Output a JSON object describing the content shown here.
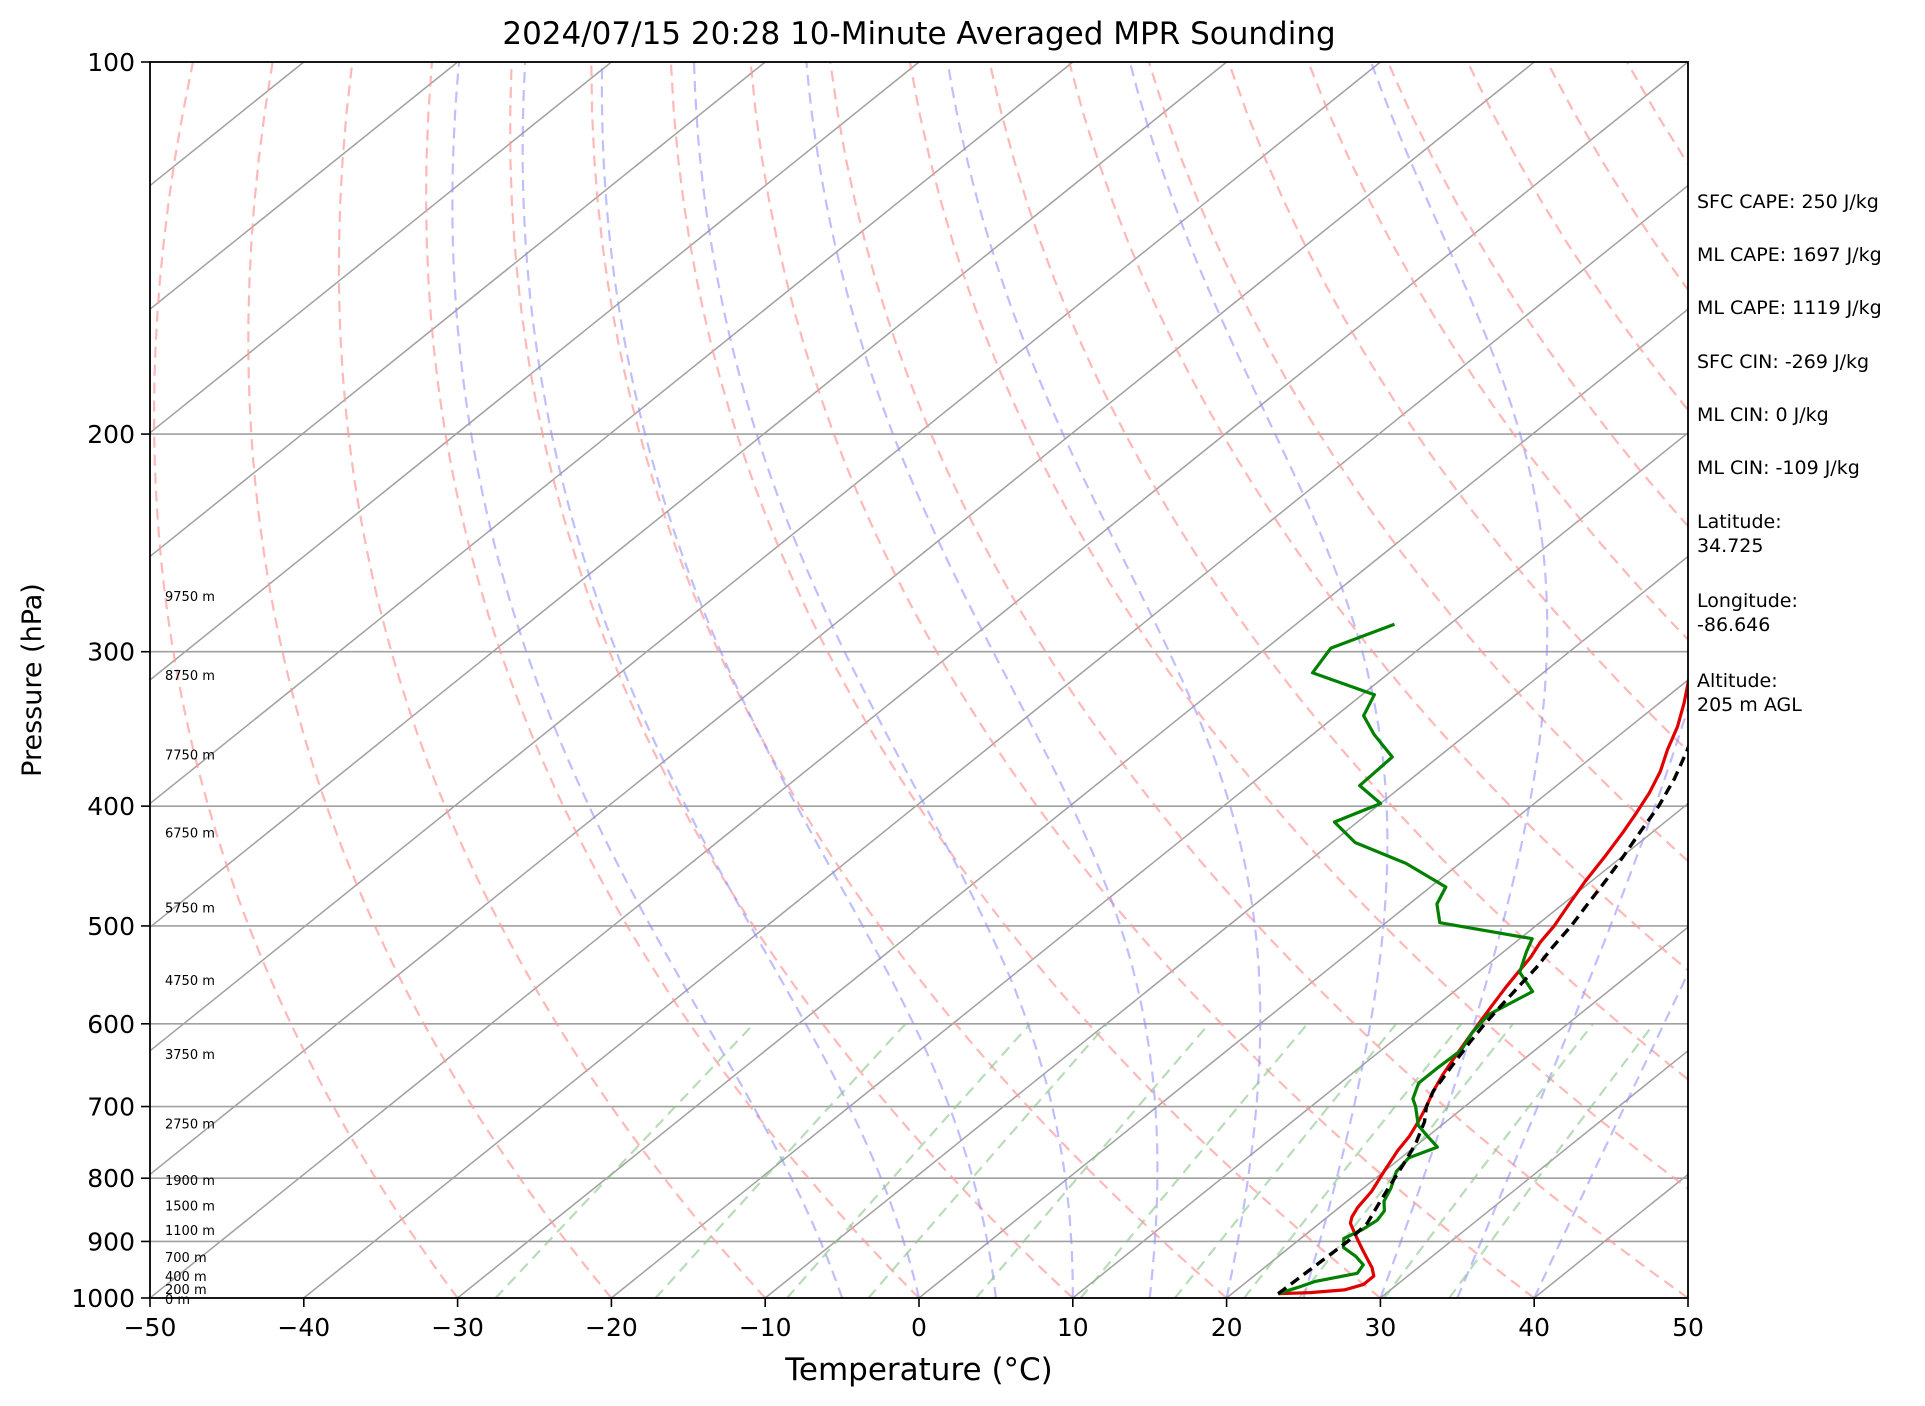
{
  "chart_data": {
    "type": "line",
    "title": "2024/07/15 20:28 10-Minute Averaged MPR Sounding",
    "xlabel": "Temperature (°C)",
    "ylabel": "Pressure (hPa)",
    "xlim": [
      -50,
      50
    ],
    "ylim": [
      1000,
      100
    ],
    "y_scale": "log",
    "skew_t": true,
    "grid": true,
    "x_ticks": [
      -50,
      -40,
      -30,
      -20,
      -10,
      0,
      10,
      20,
      30,
      40,
      50
    ],
    "x_tick_labels": [
      "−50",
      "−40",
      "−30",
      "−20",
      "−10",
      "0",
      "10",
      "20",
      "30",
      "40",
      "50"
    ],
    "y_ticks": [
      1000,
      900,
      800,
      700,
      600,
      500,
      400,
      300,
      200,
      100
    ],
    "y_tick_labels": [
      "1000",
      "900",
      "800",
      "700",
      "600",
      "500",
      "400",
      "300",
      "200",
      "100"
    ],
    "colors": {
      "temperature": "#e00000",
      "dewpoint": "#008000",
      "parcel": "#000000",
      "isotherm": "#a0a0a0",
      "dry_adiabat": "#ff9a9a",
      "moist_adiabat": "#8a8aff",
      "mixing_ratio": "#88c488"
    },
    "series": [
      {
        "key": "temperature",
        "pressure_hPa": [
          992,
          990,
          985,
          975,
          960,
          945,
          930,
          915,
          900,
          885,
          870,
          860,
          845,
          820,
          790,
          760,
          740,
          720,
          700,
          680,
          660,
          640,
          620,
          600,
          580,
          560,
          545,
          530,
          515,
          500,
          480,
          460,
          440,
          420,
          405,
          390,
          375,
          360,
          345,
          330,
          315,
          300,
          285
        ],
        "values": [
          23.0,
          25.0,
          27.0,
          27.8,
          27.8,
          27.0,
          26.0,
          25.0,
          24.0,
          23.0,
          22.0,
          21.6,
          21.2,
          20.8,
          20.0,
          19.2,
          18.8,
          18.2,
          17.5,
          16.7,
          16.0,
          15.4,
          14.8,
          14.2,
          13.6,
          13.0,
          12.6,
          12.2,
          11.6,
          11.2,
          10.4,
          9.6,
          8.9,
          8.1,
          7.4,
          6.6,
          5.6,
          4.3,
          3.1,
          1.6,
          -0.1,
          -1.9,
          -3.8
        ]
      },
      {
        "key": "dewpoint",
        "pressure_hPa": [
          992,
          980,
          970,
          955,
          940,
          925,
          910,
          895,
          880,
          865,
          850,
          835,
          815,
          790,
          770,
          755,
          740,
          725,
          700,
          690,
          670,
          650,
          630,
          610,
          590,
          565,
          545,
          525,
          512,
          497,
          480,
          465,
          445,
          428,
          412,
          398,
          385,
          365,
          350,
          338,
          325,
          312,
          298,
          285
        ],
        "values": [
          23.0,
          23.8,
          24.4,
          26.5,
          26.2,
          25.0,
          23.5,
          22.8,
          23.3,
          23.5,
          23.2,
          22.4,
          21.8,
          20.8,
          20.5,
          21.5,
          20.0,
          18.5,
          16.8,
          16.0,
          15.1,
          15.1,
          15.2,
          14.5,
          14.1,
          15.1,
          12.7,
          11.5,
          10.8,
          3.5,
          1.8,
          1.0,
          -3.5,
          -8.5,
          -11.5,
          -10.0,
          -12.8,
          -13.0,
          -16.0,
          -18.2,
          -19.2,
          -25.0,
          -25.8,
          -23.6
        ]
      },
      {
        "key": "parcel",
        "pressure_hPa": [
          992,
          960,
          930,
          900,
          870,
          840,
          810,
          780,
          750,
          720,
          700,
          680,
          650,
          620,
          600,
          580,
          560,
          540,
          520,
          500,
          480,
          460,
          440,
          420,
          400,
          380,
          360,
          340,
          320,
          300,
          285
        ],
        "values": [
          23.0,
          23.1,
          23.2,
          23.3,
          23.1,
          22.3,
          21.5,
          20.7,
          19.8,
          18.6,
          17.5,
          16.7,
          15.9,
          15.1,
          14.6,
          14.2,
          13.8,
          13.4,
          12.8,
          12.3,
          11.6,
          10.9,
          10.1,
          9.2,
          8.3,
          7.1,
          5.6,
          3.8,
          1.7,
          -0.7,
          -2.3
        ]
      }
    ],
    "height_labels": [
      {
        "text": "0 m",
        "pressure_hPa": 1004
      },
      {
        "text": "200 m",
        "pressure_hPa": 985
      },
      {
        "text": "400 m",
        "pressure_hPa": 962
      },
      {
        "text": "700 m",
        "pressure_hPa": 928
      },
      {
        "text": "1100 m",
        "pressure_hPa": 883
      },
      {
        "text": "1500 m",
        "pressure_hPa": 843
      },
      {
        "text": "1900 m",
        "pressure_hPa": 804
      },
      {
        "text": "2750 m",
        "pressure_hPa": 724
      },
      {
        "text": "3750 m",
        "pressure_hPa": 636
      },
      {
        "text": "4750 m",
        "pressure_hPa": 554
      },
      {
        "text": "5750 m",
        "pressure_hPa": 484
      },
      {
        "text": "6750 m",
        "pressure_hPa": 421
      },
      {
        "text": "7750 m",
        "pressure_hPa": 364
      },
      {
        "text": "8750 m",
        "pressure_hPa": 314
      },
      {
        "text": "9750 m",
        "pressure_hPa": 271
      }
    ],
    "annotations": [
      "SFC CAPE: 250 J/kg",
      "ML CAPE: 1697 J/kg",
      "ML CAPE: 1119 J/kg",
      "SFC CIN: -269 J/kg",
      "ML CIN: 0 J/kg",
      "ML CIN: -109 J/kg",
      "Latitude:\n34.725",
      "Longitude:\n-86.646",
      "Altitude:\n205 m AGL"
    ]
  }
}
